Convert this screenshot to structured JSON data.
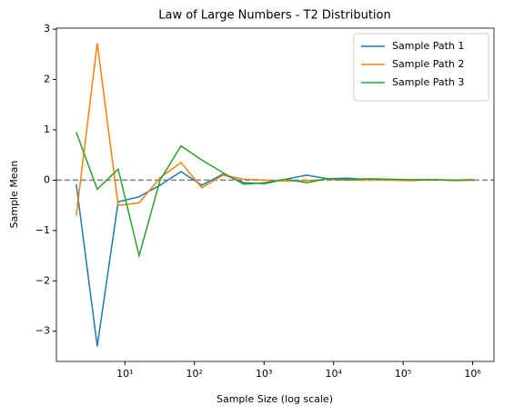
{
  "chart_data": {
    "type": "line",
    "title": "Law of Large Numbers - T2 Distribution",
    "x_label": "Sample Size (log scale)",
    "y_label": "Sample Mean",
    "x": [
      2,
      4,
      8,
      16,
      32,
      64,
      128,
      256,
      512,
      1024,
      2048,
      4096,
      8192,
      16384,
      32768,
      65536,
      131072,
      262144,
      524288,
      1048576
    ],
    "series": [
      {
        "name": "Sample Path 1",
        "color": "#1f77b4",
        "values": [
          -0.08,
          -3.3,
          -0.43,
          -0.33,
          -0.1,
          0.17,
          -0.1,
          0.12,
          -0.05,
          -0.07,
          0.02,
          0.1,
          0.03,
          0.04,
          0.01,
          0.01,
          0.0,
          0.01,
          0.0,
          0.0
        ]
      },
      {
        "name": "Sample Path 2",
        "color": "#ff7f0e",
        "values": [
          -0.7,
          2.72,
          -0.5,
          -0.45,
          0.05,
          0.35,
          -0.15,
          0.1,
          0.02,
          0.0,
          -0.02,
          -0.01,
          0.02,
          0.0,
          0.01,
          0.0,
          -0.01,
          0.01,
          -0.01,
          0.0
        ]
      },
      {
        "name": "Sample Path 3",
        "color": "#2ca02c",
        "values": [
          0.95,
          -0.18,
          0.22,
          -1.5,
          0.0,
          0.68,
          0.4,
          0.15,
          -0.08,
          -0.05,
          0.02,
          -0.05,
          0.03,
          0.01,
          0.03,
          0.02,
          0.01,
          0.01,
          0.0,
          0.01
        ]
      }
    ],
    "reference_line": 0,
    "reference_color": "#808080",
    "xscale": "log",
    "xlim": [
      1.035,
      2024000
    ],
    "xticks": [
      {
        "value": 10,
        "label": "10¹"
      },
      {
        "value": 100,
        "label": "10²"
      },
      {
        "value": 1000,
        "label": "10³"
      },
      {
        "value": 10000,
        "label": "10⁴"
      },
      {
        "value": 100000,
        "label": "10⁵"
      },
      {
        "value": 1000000,
        "label": "10⁶"
      }
    ],
    "ylim": [
      -3.6,
      3.02
    ],
    "yticks": [
      -3,
      -2,
      -1,
      0,
      1,
      2,
      3
    ],
    "ytick_labels": [
      "−3",
      "−2",
      "−1",
      "0",
      "1",
      "2",
      "3"
    ],
    "legend": "upper right"
  }
}
